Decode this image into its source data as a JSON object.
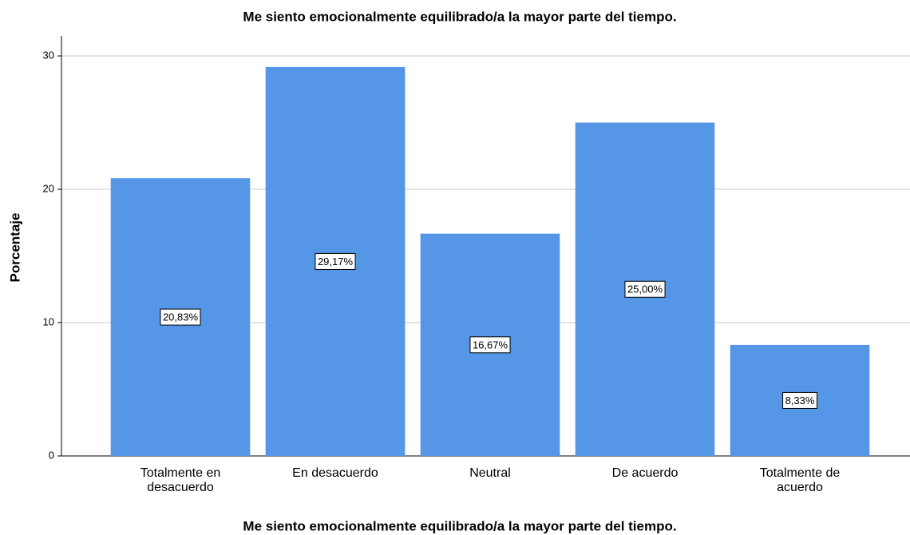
{
  "chart_data": {
    "type": "bar",
    "title": "Me siento emocionalmente equilibrado/a la mayor parte del tiempo.",
    "x_label": "Me siento emocionalmente equilibrado/a la mayor parte del tiempo.",
    "y_label": "Porcentaje",
    "categories": [
      "Totalmente en desacuerdo",
      "En desacuerdo",
      "Neutral",
      "De acuerdo",
      "Totalmente de acuerdo"
    ],
    "values": [
      20.83,
      29.17,
      16.67,
      25.0,
      8.33
    ],
    "value_labels": [
      "20,83%",
      "29,17%",
      "16,67%",
      "25,00%",
      "8,33%"
    ],
    "color": "#5596e6",
    "ylim": [
      0,
      31.5
    ],
    "yticks": [
      0,
      10,
      20,
      30
    ],
    "grid": true
  }
}
